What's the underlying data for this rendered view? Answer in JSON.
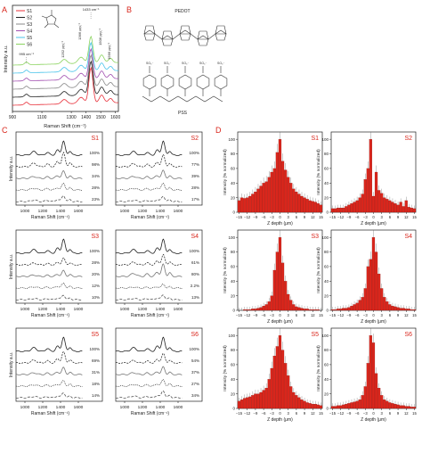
{
  "panels": {
    "A": {
      "letter": "A",
      "xlabel": "Raman Shift (cm⁻¹)",
      "ylabel": "Intensity a.u.",
      "x_ticks": [
        "900",
        "1100",
        "1300",
        "1400",
        "1500",
        "1600"
      ],
      "legend": [
        {
          "label": "S1",
          "color": "#e8303a"
        },
        {
          "label": "S2",
          "color": "#222222"
        },
        {
          "label": "S3",
          "color": "#8a8a8a"
        },
        {
          "label": "S4",
          "color": "#a24fb0"
        },
        {
          "label": "S5",
          "color": "#49c3ea"
        },
        {
          "label": "S6",
          "color": "#8bd35f"
        }
      ],
      "annotations": [
        "1433 cm⁻¹",
        "1252 cm⁻¹",
        "1366 cm⁻¹",
        "1506 cm⁻¹",
        "1566 cm⁻¹",
        "995 cm⁻¹"
      ]
    },
    "B": {
      "letter": "B",
      "top_label": "PEDOT",
      "bottom_label": "PSS"
    },
    "C": {
      "letter": "C",
      "xlabel": "Raman Shift (cm⁻¹)",
      "ylabel": "Intensity a.u.",
      "x_ticks": [
        "1000",
        "1200",
        "1400",
        "1600"
      ],
      "subplots": [
        {
          "label": "S1",
          "percents": [
            "100%",
            "98%",
            "34%",
            "28%",
            "23%"
          ]
        },
        {
          "label": "S2",
          "percents": [
            "100%",
            "77%",
            "39%",
            "28%",
            "17%"
          ]
        },
        {
          "label": "S3",
          "percents": [
            "100%",
            "28%",
            "20%",
            "12%",
            "10%"
          ]
        },
        {
          "label": "S4",
          "percents": [
            "100%",
            "61%",
            "80%",
            "2.2%",
            "13%"
          ]
        },
        {
          "label": "S5",
          "percents": [
            "100%",
            "69%",
            "31%",
            "18%",
            "14%"
          ]
        },
        {
          "label": "S6",
          "percents": [
            "100%",
            "54%",
            "37%",
            "27%",
            "34%"
          ]
        }
      ]
    },
    "D": {
      "letter": "D",
      "xlabel": "Z depth (μm)",
      "ylabel": "Intensity (% normalized)",
      "x_ticks": [
        "-15",
        "-12",
        "-9",
        "-6",
        "-3",
        "0",
        "3",
        "6",
        "9",
        "12",
        "15"
      ],
      "y_ticks": [
        "0",
        "20",
        "40",
        "60",
        "80",
        "100"
      ],
      "bar_color": "#d9261c"
    }
  },
  "chart_data": [
    {
      "type": "line",
      "panel": "A",
      "xlabel": "Raman Shift (cm⁻¹)",
      "ylabel": "Intensity a.u.",
      "xlim": [
        900,
        1620
      ],
      "x_ticks": [
        900,
        1100,
        1300,
        1400,
        1500,
        1600
      ],
      "peaks": [
        995,
        1252,
        1366,
        1433,
        1506,
        1566
      ],
      "series": [
        {
          "name": "S1",
          "color": "#e8303a"
        },
        {
          "name": "S2",
          "color": "#222222"
        },
        {
          "name": "S3",
          "color": "#8a8a8a"
        },
        {
          "name": "S4",
          "color": "#a24fb0"
        },
        {
          "name": "S5",
          "color": "#49c3ea"
        },
        {
          "name": "S6",
          "color": "#8bd35f"
        }
      ]
    },
    {
      "type": "line",
      "panel": "C",
      "xlabel": "Raman Shift (cm⁻¹)",
      "ylabel": "Intensity a.u.",
      "xlim": [
        900,
        1650
      ],
      "x_ticks": [
        1000,
        1200,
        1400,
        1600
      ],
      "subplots": [
        {
          "label": "S1",
          "relative_intensity_percent": [
            100,
            98,
            34,
            28,
            23
          ]
        },
        {
          "label": "S2",
          "relative_intensity_percent": [
            100,
            77,
            39,
            28,
            17
          ]
        },
        {
          "label": "S3",
          "relative_intensity_percent": [
            100,
            28,
            20,
            12,
            10
          ]
        },
        {
          "label": "S4",
          "relative_intensity_percent": [
            100,
            61,
            80,
            2.2,
            13
          ]
        },
        {
          "label": "S5",
          "relative_intensity_percent": [
            100,
            69,
            31,
            18,
            14
          ]
        },
        {
          "label": "S6",
          "relative_intensity_percent": [
            100,
            54,
            37,
            27,
            34
          ]
        }
      ]
    },
    {
      "type": "bar",
      "panel": "D",
      "xlabel": "Z depth (μm)",
      "ylabel": "Intensity (% normalized)",
      "xlim": [
        -15.5,
        15.5
      ],
      "ylim": [
        0,
        110
      ],
      "x": [
        -15,
        -14,
        -13,
        -12,
        -11,
        -10,
        -9,
        -8,
        -7,
        -6,
        -5,
        -4,
        -3,
        -2,
        -1,
        0,
        1,
        2,
        3,
        4,
        5,
        6,
        7,
        8,
        9,
        10,
        11,
        12,
        13,
        14,
        15
      ],
      "series": [
        {
          "name": "S1",
          "values": [
            16,
            20,
            19,
            20,
            22,
            25,
            28,
            32,
            36,
            40,
            42,
            48,
            55,
            60,
            82,
            100,
            70,
            58,
            48,
            40,
            32,
            28,
            25,
            22,
            20,
            18,
            16,
            15,
            14,
            12,
            10
          ]
        },
        {
          "name": "S2",
          "values": [
            5,
            5,
            6,
            6,
            6,
            8,
            10,
            12,
            14,
            16,
            20,
            25,
            45,
            60,
            100,
            22,
            55,
            30,
            26,
            20,
            18,
            16,
            14,
            12,
            10,
            14,
            8,
            16,
            7,
            6,
            5
          ]
        },
        {
          "name": "S3",
          "values": [
            0,
            0,
            1,
            1,
            1,
            2,
            2,
            3,
            4,
            6,
            8,
            12,
            20,
            55,
            80,
            100,
            65,
            40,
            22,
            14,
            8,
            5,
            4,
            3,
            2,
            2,
            1,
            1,
            1,
            1,
            0
          ]
        },
        {
          "name": "S4",
          "values": [
            1,
            1,
            2,
            2,
            3,
            3,
            4,
            6,
            8,
            10,
            14,
            18,
            30,
            60,
            70,
            100,
            80,
            50,
            30,
            18,
            12,
            8,
            6,
            5,
            4,
            3,
            3,
            2,
            2,
            1,
            1
          ]
        },
        {
          "name": "S5",
          "values": [
            10,
            12,
            14,
            15,
            16,
            18,
            20,
            20,
            22,
            25,
            28,
            40,
            55,
            72,
            85,
            100,
            80,
            62,
            45,
            30,
            22,
            18,
            15,
            12,
            10,
            8,
            7,
            6,
            6,
            5,
            4
          ]
        },
        {
          "name": "S6",
          "values": [
            3,
            3,
            4,
            4,
            5,
            6,
            7,
            8,
            9,
            10,
            12,
            18,
            30,
            62,
            100,
            90,
            48,
            28,
            18,
            12,
            10,
            8,
            7,
            6,
            5,
            4,
            4,
            3,
            3,
            2,
            2
          ]
        }
      ]
    }
  ]
}
